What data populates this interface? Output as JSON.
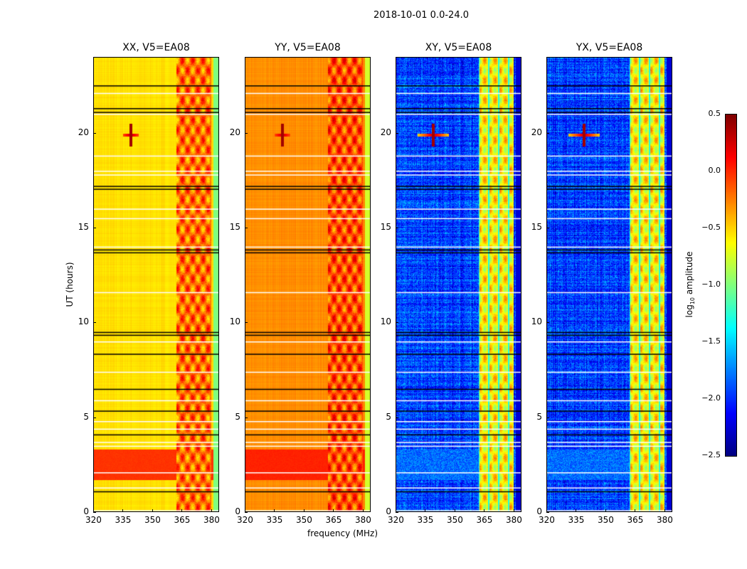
{
  "chart_data": {
    "type": "heatmap",
    "title": "2018-10-01 0.0-24.0",
    "xlabel": "frequency (MHz)",
    "ylabel": "UT (hours)",
    "xlim": [
      320,
      384
    ],
    "ylim": [
      0,
      24
    ],
    "xticks": [
      320,
      335,
      350,
      365,
      380
    ],
    "yticks": [
      0,
      5,
      10,
      15,
      20
    ],
    "colorbar": {
      "label": "log10 amplitude",
      "label_main": "log",
      "label_sub": "10",
      "label_rest": " amplitude",
      "range": [
        -2.5,
        0.5
      ],
      "ticks": [
        "0.5",
        "0.0",
        "−0.5",
        "−1.0",
        "−1.5",
        "−2.0",
        "−2.5"
      ],
      "tick_values": [
        0.5,
        0.0,
        -0.5,
        -1.0,
        -1.5,
        -2.0,
        -2.5
      ],
      "colormap": "jet"
    },
    "panels": [
      {
        "title": "XX, V5=EA08",
        "base": -0.6,
        "rfi_level": -0.2,
        "low_band_level": -0.05
      },
      {
        "title": "YY, V5=EA08",
        "base": -0.35,
        "rfi_level": -0.1,
        "low_band_level": 0.0
      },
      {
        "title": "XY, V5=EA08",
        "base": -2.25,
        "rfi_level": -0.6,
        "low_band_level": -2.0
      },
      {
        "title": "YX, V5=EA08",
        "base": -2.25,
        "rfi_level": -0.6,
        "low_band_level": -2.0
      }
    ],
    "rfi_band_mhz": [
      362,
      380
    ],
    "low_band_hours": [
      1.7,
      3.3
    ],
    "point_source": {
      "freq_mhz": 339,
      "ut_hours": 19.9
    },
    "flagged_black_hours": [
      22.5,
      21.3,
      21.1,
      17.2,
      17.05,
      13.85,
      13.7,
      9.5,
      9.35,
      8.35,
      6.5,
      5.35,
      4.1,
      1.1
    ],
    "flagged_white_hours": [
      22.1,
      21.0,
      18.8,
      18.0,
      17.8,
      16.0,
      15.5,
      14.0,
      11.6,
      9.0,
      7.4,
      5.9,
      4.8,
      4.4,
      3.7,
      3.5,
      2.1,
      1.3,
      0.1
    ]
  }
}
